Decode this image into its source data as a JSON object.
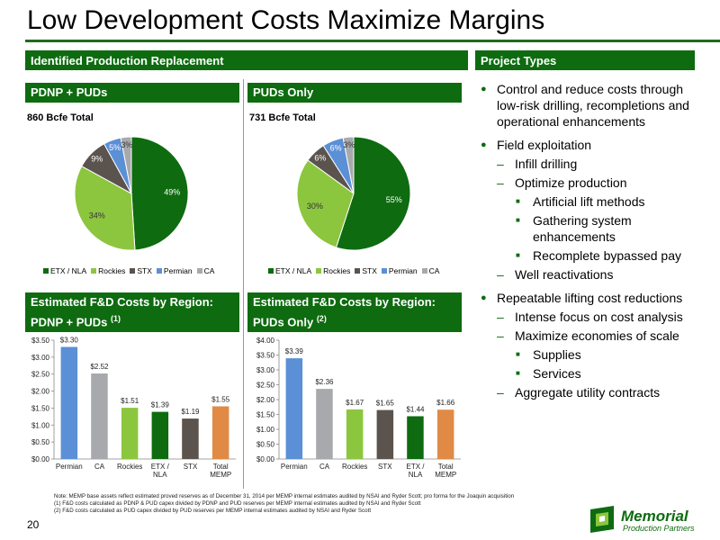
{
  "slide": {
    "title": "Low Development Costs Maximize Margins",
    "page_number": "20"
  },
  "headers": {
    "left_section": "Identified Production Replacement",
    "right_section": "Project Types",
    "pie1": "PDNP + PUDs",
    "pie2": "PUDs Only",
    "bar1_line1": "Estimated F&D Costs by Region:",
    "bar1_line2": "PDNP + PUDs",
    "bar1_note": "(1)",
    "bar2_line1": "Estimated F&D Costs by Region:",
    "bar2_line2": "PUDs Only",
    "bar2_note": "(2)"
  },
  "totals": {
    "pie1": "860 Bcfe Total",
    "pie2": "731 Bcfe Total"
  },
  "colors": {
    "etx_nla": "#0e6b10",
    "rockies": "#8cc63f",
    "stx": "#5b534d",
    "permian": "#5b8fd6",
    "ca": "#a7a9ac",
    "total_memp": "#e08a46",
    "header_green": "#0e6b10"
  },
  "legend": [
    "ETX / NLA",
    "Rockies",
    "STX",
    "Permian",
    "CA"
  ],
  "chart_data": [
    {
      "type": "pie",
      "title": "PDNP + PUDs",
      "labels": [
        "ETX / NLA",
        "Rockies",
        "STX",
        "Permian",
        "CA"
      ],
      "values": [
        49,
        34,
        9,
        5,
        3
      ],
      "value_labels": [
        "49%",
        "34%",
        "9%",
        "5%",
        "3%"
      ]
    },
    {
      "type": "pie",
      "title": "PUDs Only",
      "labels": [
        "ETX / NLA",
        "Rockies",
        "STX",
        "Permian",
        "CA"
      ],
      "values": [
        55,
        30,
        6,
        6,
        3
      ],
      "value_labels": [
        "55%",
        "30%",
        "6%",
        "6%",
        "3%"
      ]
    },
    {
      "type": "bar",
      "title": "Estimated F&D Costs by Region: PDNP + PUDs",
      "categories": [
        "Permian",
        "CA",
        "Rockies",
        "ETX / NLA",
        "STX",
        "Total MEMP"
      ],
      "values": [
        3.3,
        2.52,
        1.51,
        1.39,
        1.19,
        1.55
      ],
      "value_labels": [
        "$3.30",
        "$2.52",
        "$1.51",
        "$1.39",
        "$1.19",
        "$1.55"
      ],
      "bar_colors": [
        "permian",
        "ca",
        "rockies",
        "etx_nla",
        "stx",
        "total_memp"
      ],
      "ylim": [
        0,
        3.5
      ],
      "yticks": [
        "$0.00",
        "$0.50",
        "$1.00",
        "$1.50",
        "$2.00",
        "$2.50",
        "$3.00",
        "$3.50"
      ]
    },
    {
      "type": "bar",
      "title": "Estimated F&D Costs by Region: PUDs Only",
      "categories": [
        "Permian",
        "CA",
        "Rockies",
        "STX",
        "ETX / NLA",
        "Total MEMP"
      ],
      "values": [
        3.39,
        2.36,
        1.67,
        1.65,
        1.44,
        1.66
      ],
      "value_labels": [
        "$3.39",
        "$2.36",
        "$1.67",
        "$1.65",
        "$1.44",
        "$1.66"
      ],
      "bar_colors": [
        "permian",
        "ca",
        "rockies",
        "stx",
        "etx_nla",
        "total_memp"
      ],
      "ylim": [
        0,
        4.0
      ],
      "yticks": [
        "$0.00",
        "$0.50",
        "$1.00",
        "$1.50",
        "$2.00",
        "$2.50",
        "$3.00",
        "$3.50",
        "$4.00"
      ]
    }
  ],
  "bullets": [
    {
      "level": 1,
      "text": "Control and reduce costs through low-risk drilling, recompletions and operational enhancements"
    },
    {
      "level": 1,
      "text": "Field exploitation"
    },
    {
      "level": 2,
      "text": "Infill drilling"
    },
    {
      "level": 2,
      "text": "Optimize production"
    },
    {
      "level": 3,
      "text": "Artificial lift methods"
    },
    {
      "level": 3,
      "text": "Gathering system enhancements"
    },
    {
      "level": 3,
      "text": "Recomplete bypassed pay"
    },
    {
      "level": 2,
      "text": "Well reactivations"
    },
    {
      "level": 1,
      "text": "Repeatable lifting cost reductions"
    },
    {
      "level": 2,
      "text": "Intense focus on cost analysis"
    },
    {
      "level": 2,
      "text": "Maximize economies of scale"
    },
    {
      "level": 3,
      "text": "Supplies"
    },
    {
      "level": 3,
      "text": "Services"
    },
    {
      "level": 2,
      "text": "Aggregate utility contracts"
    }
  ],
  "notes": [
    "Note: MEMP base assets reflect estimated proved reserves as of December 31, 2014 per MEMP internal estimates audited by NSAI and Ryder Scott; pro forma for the Joaquin acquisition",
    "(1)     F&D costs calculated as PDNP & PUD capex divided by PDNP and PUD reserves per MEMP internal estimates audited by NSAI and Ryder Scott",
    "(2)     F&D costs calculated as PUD capex divided by PUD reserves per MEMP internal estimates audited by NSAI and Ryder Scott"
  ],
  "logo": {
    "name": "Memorial",
    "tagline": "Production Partners"
  }
}
